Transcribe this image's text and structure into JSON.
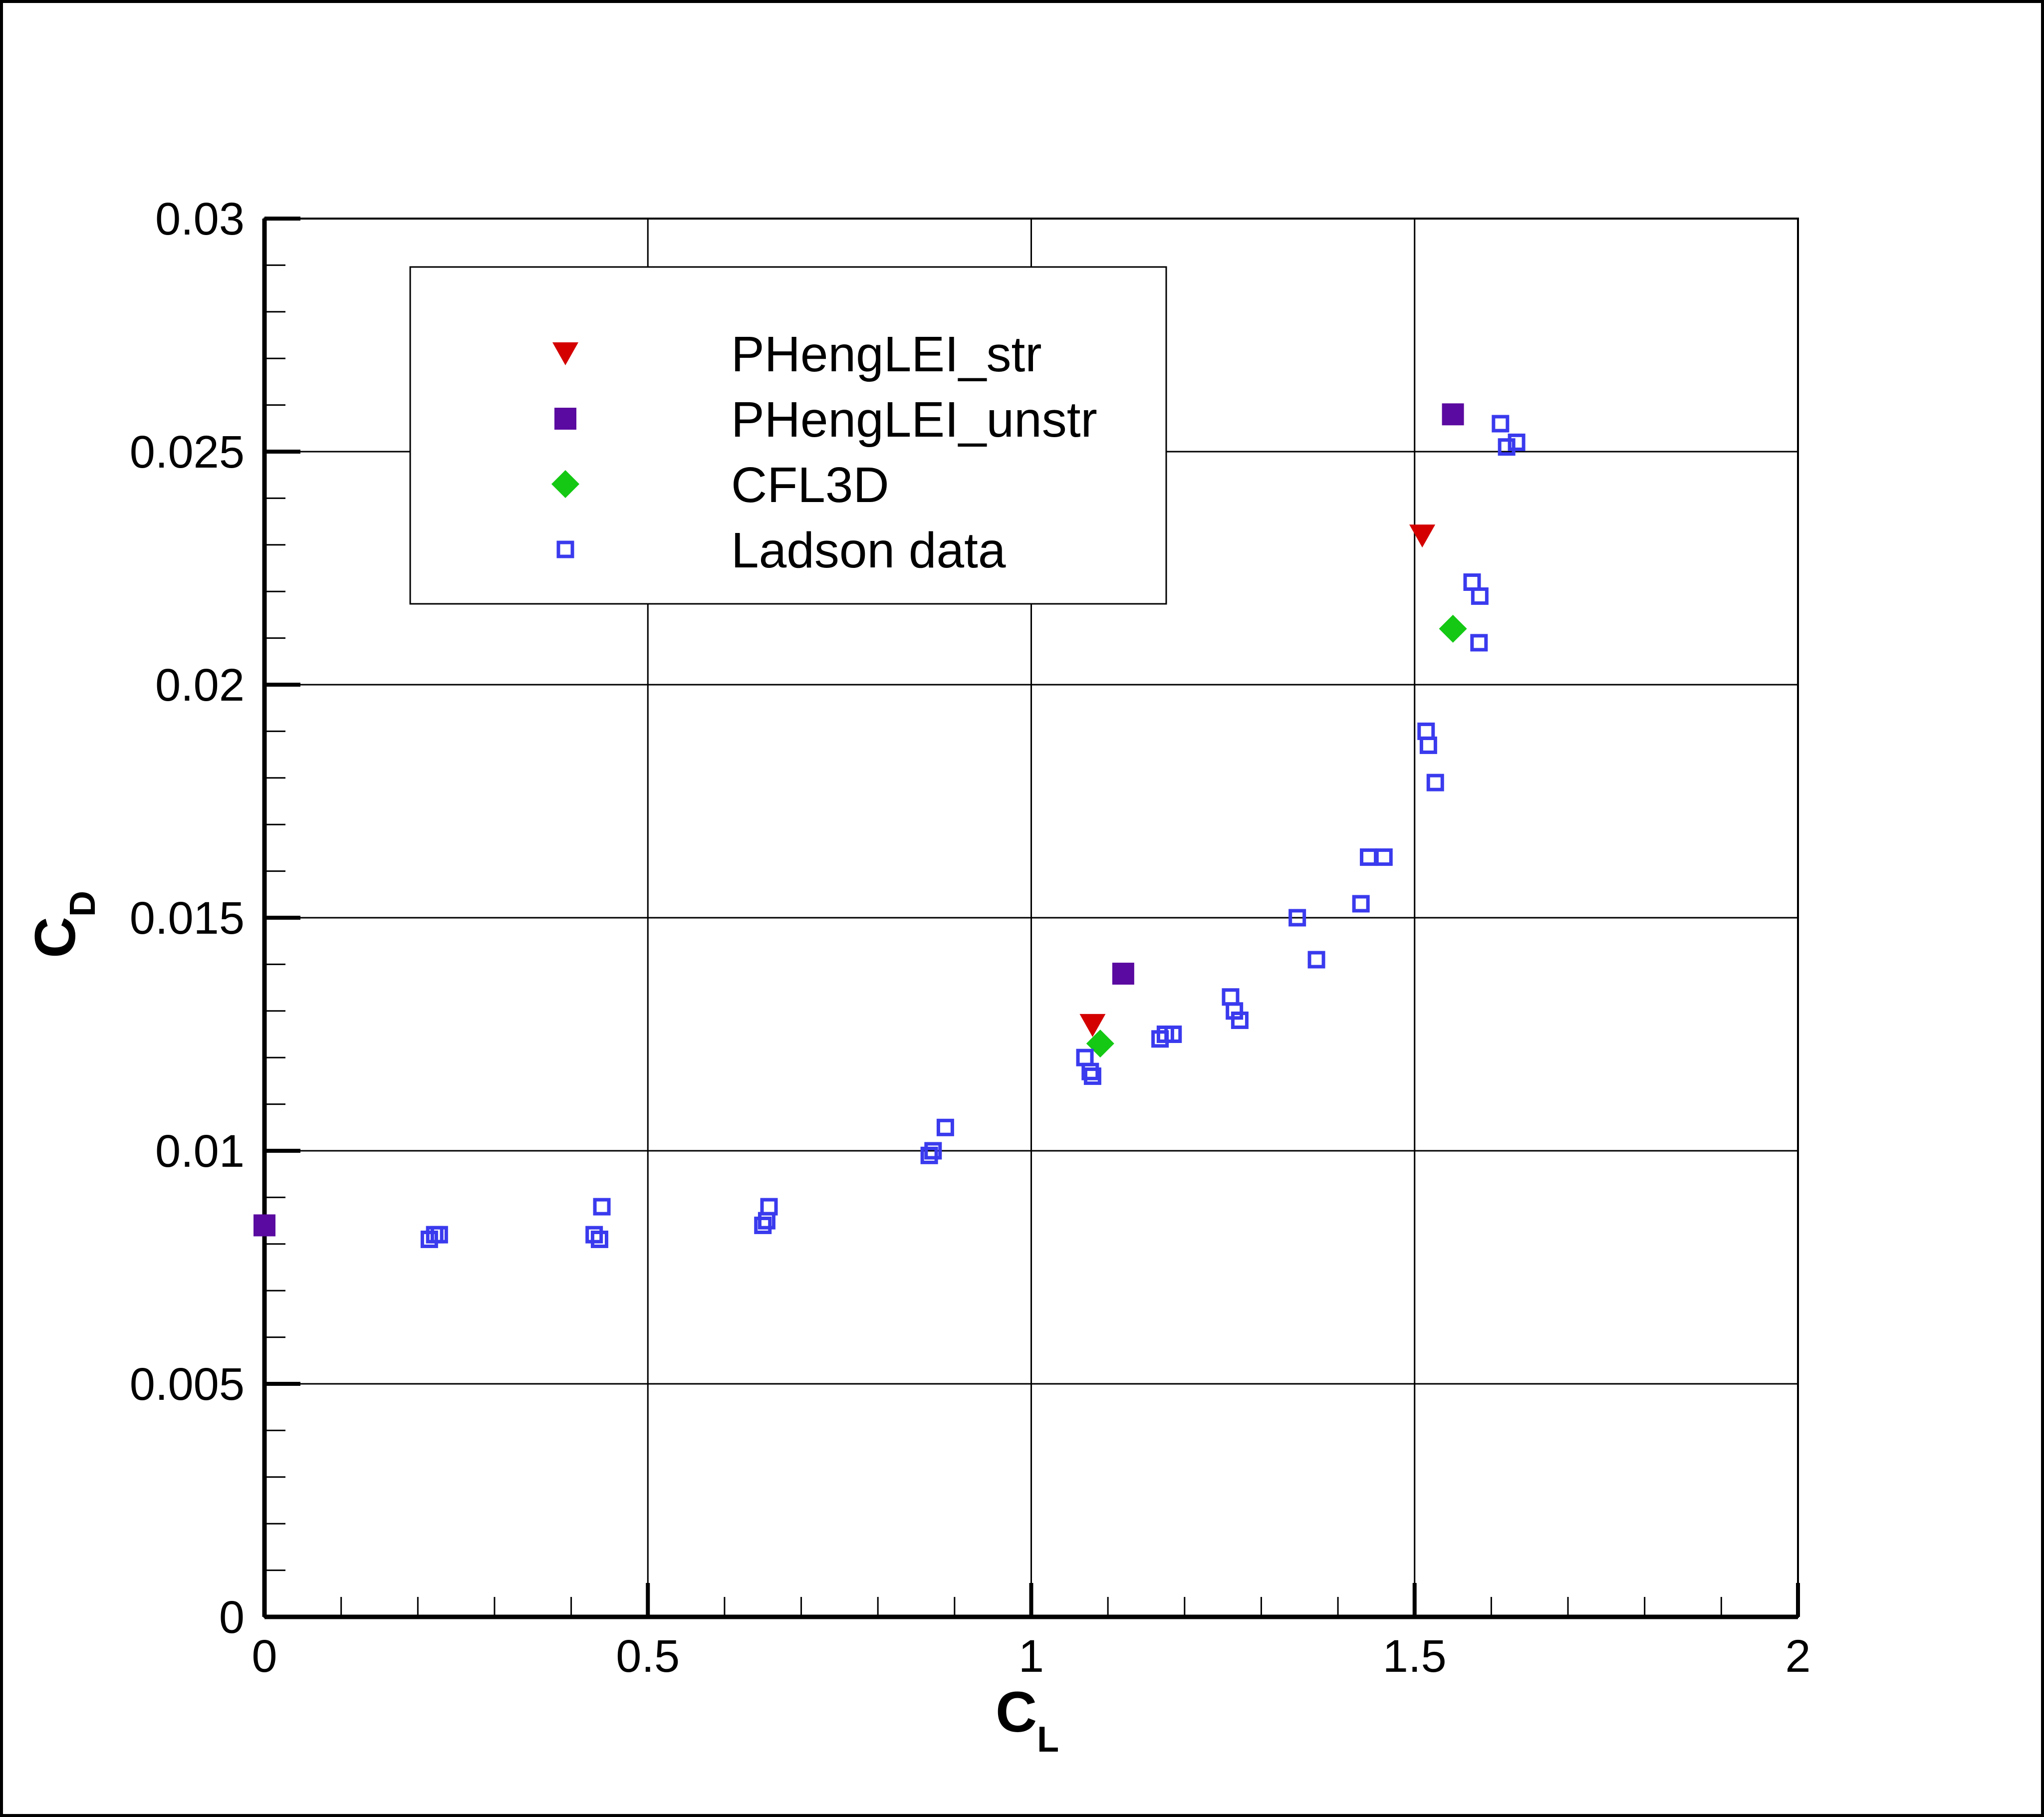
{
  "chart_data": {
    "type": "scatter",
    "x_axis": {
      "label": "C",
      "label_sub": "L",
      "range": [
        0,
        2
      ],
      "ticks": [
        0,
        0.5,
        1,
        1.5,
        2
      ],
      "tick_labels": [
        "0",
        "0.5",
        "1",
        "1.5",
        "2"
      ]
    },
    "y_axis": {
      "label": "C",
      "label_sub": "D",
      "range": [
        0,
        0.03
      ],
      "ticks": [
        0,
        0.005,
        0.01,
        0.015,
        0.02,
        0.025,
        0.03
      ],
      "tick_labels": [
        "0",
        "0.005",
        "0.01",
        "0.015",
        "0.02",
        "0.025",
        "0.03"
      ]
    },
    "grid": true,
    "legend_position": "top-left",
    "series": [
      {
        "name": "PHengLEI_str",
        "marker": "triangle-down",
        "color": "#d40000",
        "filled": true,
        "points": [
          [
            1.08,
            0.0127
          ],
          [
            1.51,
            0.0232
          ]
        ]
      },
      {
        "name": "PHengLEI_unstr",
        "marker": "square",
        "color": "#5a0aa0",
        "filled": true,
        "points": [
          [
            0.0,
            0.0084
          ],
          [
            1.12,
            0.0138
          ],
          [
            1.55,
            0.0258
          ]
        ]
      },
      {
        "name": "CFL3D",
        "marker": "diamond",
        "color": "#14c814",
        "filled": true,
        "points": [
          [
            1.09,
            0.0123
          ],
          [
            1.55,
            0.0212
          ]
        ]
      },
      {
        "name": "Ladson data",
        "marker": "square-open",
        "color": "#3a3aee",
        "filled": false,
        "points": [
          [
            0.215,
            0.0081
          ],
          [
            0.222,
            0.0082
          ],
          [
            0.228,
            0.0082
          ],
          [
            0.43,
            0.0082
          ],
          [
            0.437,
            0.0081
          ],
          [
            0.44,
            0.0088
          ],
          [
            0.65,
            0.0084
          ],
          [
            0.655,
            0.0085
          ],
          [
            0.658,
            0.0088
          ],
          [
            0.867,
            0.0099
          ],
          [
            0.872,
            0.01
          ],
          [
            0.888,
            0.0105
          ],
          [
            1.07,
            0.012
          ],
          [
            1.077,
            0.0117
          ],
          [
            1.08,
            0.0116
          ],
          [
            1.168,
            0.0124
          ],
          [
            1.175,
            0.0125
          ],
          [
            1.185,
            0.0125
          ],
          [
            1.26,
            0.0133
          ],
          [
            1.265,
            0.013
          ],
          [
            1.272,
            0.0128
          ],
          [
            1.347,
            0.015
          ],
          [
            1.372,
            0.0141
          ],
          [
            1.43,
            0.0153
          ],
          [
            1.44,
            0.0163
          ],
          [
            1.46,
            0.0163
          ],
          [
            1.515,
            0.019
          ],
          [
            1.518,
            0.0187
          ],
          [
            1.527,
            0.0179
          ],
          [
            1.575,
            0.0222
          ],
          [
            1.585,
            0.0219
          ],
          [
            1.584,
            0.0209
          ],
          [
            1.612,
            0.0256
          ],
          [
            1.62,
            0.0251
          ],
          [
            1.633,
            0.0252
          ]
        ]
      }
    ]
  }
}
